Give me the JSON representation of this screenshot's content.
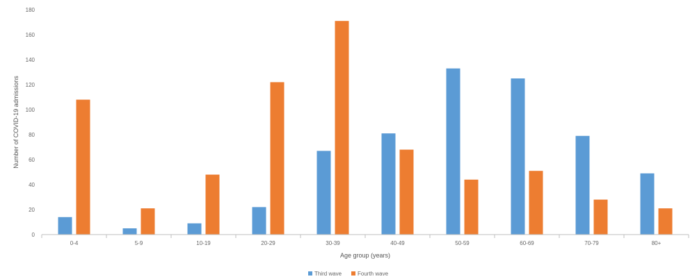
{
  "chart_data": {
    "type": "bar",
    "title": "",
    "xlabel": "Age group (years)",
    "ylabel": "Number of COVID-19 admissions",
    "categories": [
      "0-4",
      "5-9",
      "10-19",
      "20-29",
      "30-39",
      "40-49",
      "50-59",
      "60-69",
      "70-79",
      "80+"
    ],
    "series": [
      {
        "name": "Third wave",
        "values": [
          14,
          5,
          9,
          22,
          67,
          81,
          133,
          125,
          79,
          49
        ],
        "color": "#5b9bd5"
      },
      {
        "name": "Fourth wave",
        "values": [
          108,
          21,
          48,
          122,
          171,
          68,
          44,
          51,
          28,
          21
        ],
        "color": "#ed7d31"
      }
    ],
    "ylim": [
      0,
      180
    ],
    "yticks": [
      0,
      20,
      40,
      60,
      80,
      100,
      120,
      140,
      160,
      180
    ],
    "grid": false,
    "legend_position": "bottom"
  }
}
